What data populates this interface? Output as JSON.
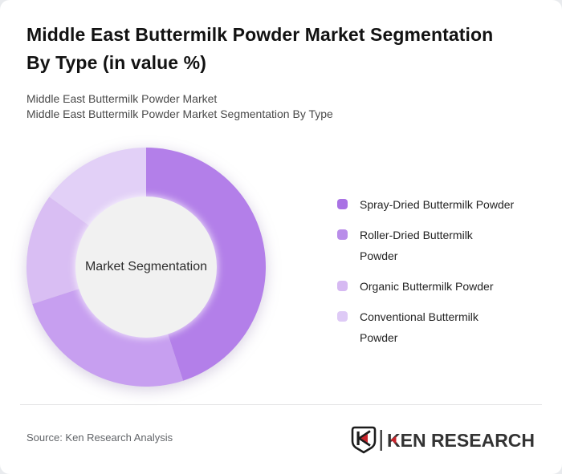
{
  "page": {
    "page_background": "#e9ebee",
    "card_background": "#ffffff"
  },
  "header": {
    "title": "Middle East Buttermilk Powder Market Segmentation By Type (in value %)",
    "subtitle1": "Middle East Buttermilk Powder Market",
    "subtitle2": "Middle East Buttermilk Powder Market Segmentation By Type"
  },
  "chart_data": {
    "type": "pie",
    "variant": "donut",
    "title": "Middle East Buttermilk Powder Market Segmentation By Type (in value %)",
    "center_label": "Market Segmentation",
    "unit": "% of value",
    "start_angle_deg": 0,
    "direction": "clockwise",
    "legend_position": "right",
    "categories": [
      "Spray-Dried Buttermilk Powder",
      "Roller-Dried Buttermilk Powder",
      "Organic Buttermilk Powder",
      "Conventional Buttermilk Powder"
    ],
    "values": [
      45,
      25,
      15,
      15
    ],
    "colors": [
      "#b37fe9",
      "#c79ff0",
      "#d9bef3",
      "#e2d0f7"
    ],
    "legend_colors": [
      "#a972e4",
      "#b98de9",
      "#d6b9f2",
      "#decaf6"
    ],
    "inner_circle_color": "#f1f1f1"
  },
  "footer": {
    "source": "Source: Ken Research Analysis",
    "logo_text": "KEN RESEARCH",
    "logo_red": "#c8242b",
    "logo_dark": "#333333"
  }
}
